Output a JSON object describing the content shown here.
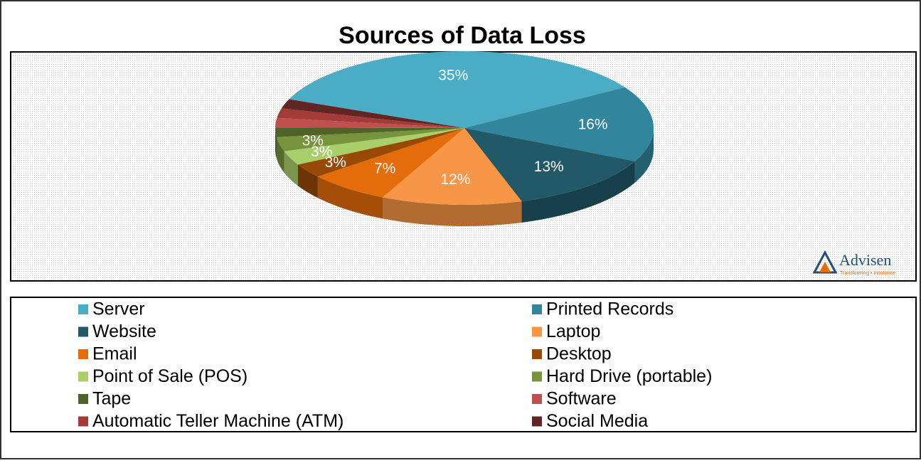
{
  "chart_data": {
    "type": "pie3d",
    "title": "Sources of Data Loss",
    "categories": [
      "Server",
      "Printed Records",
      "Website",
      "Laptop",
      "Email",
      "Desktop",
      "Point of Sale (POS)",
      "Hard Drive (portable)",
      "Tape",
      "Software",
      "Automatic Teller Machine (ATM)",
      "Social Media"
    ],
    "values": [
      35,
      16,
      13,
      12,
      7,
      3,
      3,
      3,
      2,
      2,
      2,
      2
    ],
    "value_labels": [
      "35%",
      "16%",
      "13%",
      "12%",
      "7%",
      "3%",
      "3%",
      "3%",
      null,
      null,
      null,
      null
    ],
    "colors": [
      "#4bacc6",
      "#31859c",
      "#215968",
      "#f79646",
      "#e46c0a",
      "#984807",
      "#a9cf6a",
      "#77933c",
      "#4f6228",
      "#c0504d",
      "#a33b38",
      "#632523"
    ],
    "legend": "bottom",
    "logo": {
      "name": "Advisen",
      "tagline": "Transforming • Insurance"
    }
  }
}
